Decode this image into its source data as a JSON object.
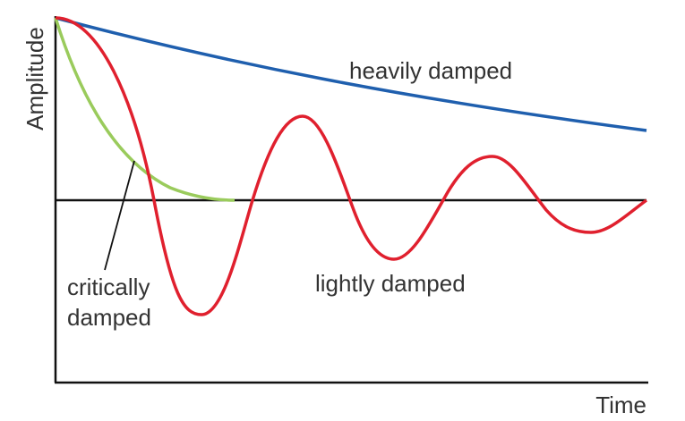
{
  "axes": {
    "y_label": "Amplitude",
    "x_label": "Time"
  },
  "curves": [
    {
      "label": "heavily damped"
    },
    {
      "label": "lightly damped"
    },
    {
      "label_lines": [
        "critically",
        "damped"
      ]
    }
  ]
}
